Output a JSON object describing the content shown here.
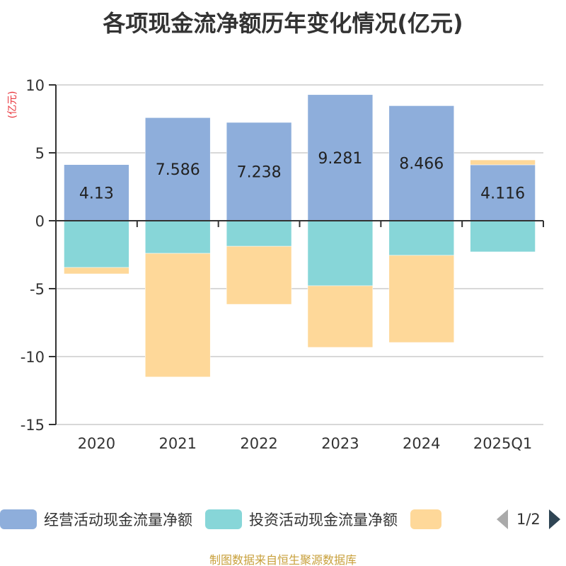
{
  "chart_data": {
    "type": "bar",
    "stacked": true,
    "title": "各项现金流净额历年变化情况(亿元)",
    "ylabel": "(亿元)",
    "ylim": [
      -15,
      10
    ],
    "yticks": [
      10,
      5,
      0,
      -5,
      -10,
      -15
    ],
    "grid": true,
    "categories": [
      "2020",
      "2021",
      "2022",
      "2023",
      "2024",
      "2025Q1"
    ],
    "series": [
      {
        "name": "经营活动现金流量净额",
        "color": "#8eaedb",
        "values": [
          4.13,
          7.586,
          7.238,
          9.281,
          8.466,
          4.116
        ],
        "labels": [
          "4.13",
          "7.586",
          "7.238",
          "9.281",
          "8.466",
          "4.116"
        ]
      },
      {
        "name": "投资活动现金流量净额",
        "color": "#87d6d8",
        "values": [
          -3.44,
          -2.4,
          -1.88,
          -4.79,
          -2.55,
          -2.29
        ]
      },
      {
        "name": "",
        "color": "#fed899",
        "values": [
          -0.47,
          -9.1,
          -4.27,
          -4.53,
          -6.41,
          0.36
        ]
      }
    ],
    "legend_position": "bottom"
  },
  "legend": {
    "items": [
      {
        "label": "经营活动现金流量净额",
        "color": "#8eaedb"
      },
      {
        "label": "投资活动现金流量净额",
        "color": "#87d6d8"
      },
      {
        "label": "",
        "color": "#fed899"
      }
    ],
    "page": "1/2"
  },
  "source": "制图数据来自恒生聚源数据库",
  "colors": {
    "axis_label_red": "#e8333a",
    "axis": "#333333",
    "grid": "#cccccc"
  }
}
